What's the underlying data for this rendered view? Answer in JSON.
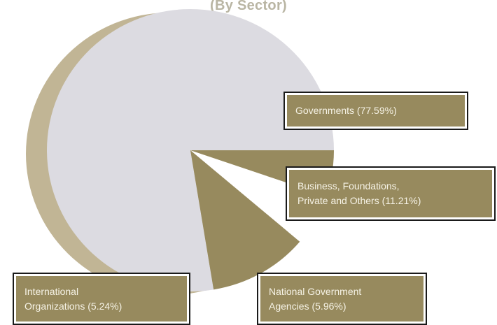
{
  "colors": {
    "slice_main": "#dcdbe1",
    "slice_khaki": "#978a5e",
    "slice_white": "#ffffff",
    "pie_shadow": "#c1b595",
    "label_fill": "#978a5e",
    "title_color": "#b9b5a3"
  },
  "chart_data": {
    "type": "pie",
    "title": "(By Sector)",
    "categories": [
      "Governments",
      "Business, Foundations, Private and Others",
      "National Government Agencies",
      "International Organizations"
    ],
    "values": [
      77.59,
      11.21,
      5.96,
      5.24
    ],
    "labels": [
      [
        "Governments (77.59%)"
      ],
      [
        "Business, Foundations,",
        "Private and Others (11.21%)"
      ],
      [
        "National Government",
        "Agencies (5.96%)"
      ],
      [
        "International",
        "Organizations (5.24%)"
      ]
    ],
    "slice_colors": [
      "#dcdbe1",
      "#978a5e",
      "#ffffff",
      "#978a5e"
    ]
  }
}
